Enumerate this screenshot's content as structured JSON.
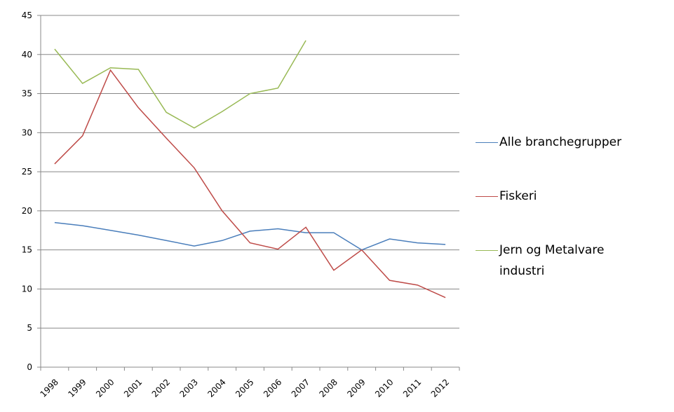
{
  "chart_data": {
    "type": "line",
    "categories": [
      "1998",
      "1999",
      "2000",
      "2001",
      "2002",
      "2003",
      "2004",
      "2005",
      "2006",
      "2007",
      "2008",
      "2009",
      "2010",
      "2011",
      "2012"
    ],
    "series": [
      {
        "name": "Alle branchegrupper",
        "color": "#4a7ebb",
        "values": [
          18.5,
          18.1,
          17.5,
          16.9,
          16.2,
          15.5,
          16.2,
          17.4,
          17.7,
          17.2,
          17.2,
          15.0,
          16.4,
          15.9,
          15.7
        ]
      },
      {
        "name": "Fiskeri",
        "color": "#be4b48",
        "values": [
          26.0,
          29.6,
          38.0,
          33.2,
          29.3,
          25.5,
          20.0,
          15.9,
          15.1,
          17.9,
          12.4,
          15.0,
          11.1,
          10.5,
          8.9
        ]
      },
      {
        "name": "Jern og Metalvare industri",
        "color": "#98b954",
        "values": [
          40.7,
          36.3,
          38.3,
          38.1,
          32.6,
          30.6,
          32.7,
          35.0,
          35.7,
          41.8,
          null,
          null,
          null,
          null,
          null
        ]
      }
    ],
    "ylim": [
      0,
      45
    ],
    "yticks": [
      0,
      5,
      10,
      15,
      20,
      25,
      30,
      35,
      40,
      45
    ],
    "grid": true,
    "legend": "right"
  }
}
